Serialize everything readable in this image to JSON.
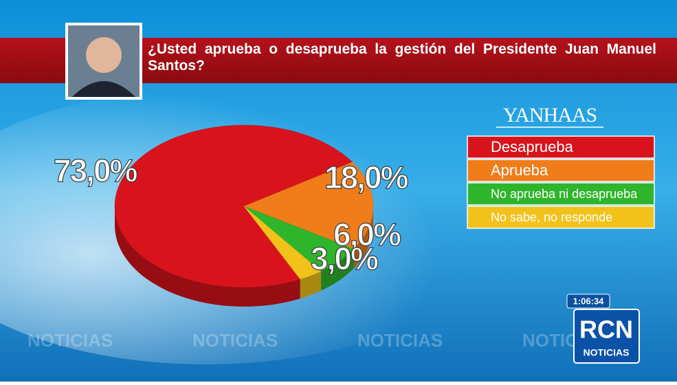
{
  "chart_data": {
    "type": "pie",
    "title": "¿Usted aprueba o desaprueba la gestión del Presidente Juan Manuel Santos?",
    "source": "YANHAAS",
    "categories": [
      "Desaprueba",
      "Aprueba",
      "No aprueba ni desaprueba",
      "No sabe, no responde"
    ],
    "values": [
      73,
      18,
      6,
      3
    ],
    "value_labels": [
      "73,0%",
      "18,0%",
      "6,0%",
      "3,0%"
    ],
    "colors": [
      "#d8131c",
      "#f07d1a",
      "#2fb52c",
      "#f2c21a"
    ]
  },
  "overlay": {
    "clock": "1:06:34",
    "logo": "RCN",
    "logo_sub": "NOTICIAS",
    "watermark": "NOTICIAS"
  }
}
